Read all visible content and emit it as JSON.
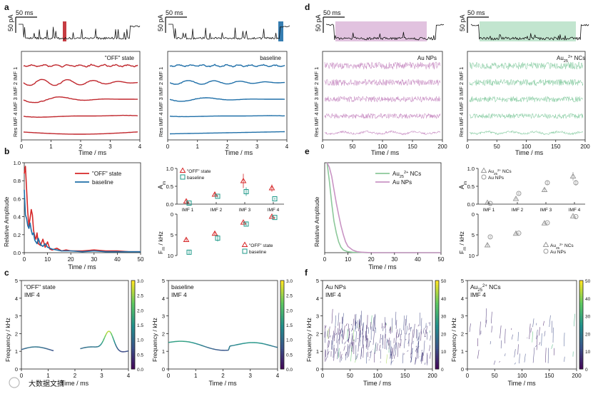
{
  "panels": {
    "a": {
      "letter": "a",
      "scale_ms": "50 ms",
      "scale_pa": "50 pA",
      "left_label": "\"OFF\" state",
      "right_label": "baseline",
      "ylabels": [
        "IMF 1",
        "IMF 2",
        "IMF 3",
        "IMF 4",
        "Res"
      ],
      "xlabel": "Time / ms",
      "xticks": [
        "0",
        "1",
        "2",
        "3",
        "4"
      ],
      "colors": {
        "left": "#c0272d",
        "right": "#1f6fa8"
      }
    },
    "d": {
      "letter": "d",
      "scale_ms": "50 ms",
      "scale_pa": "50 pA",
      "left_label": "Au NPs",
      "right_label_main": "Au",
      "right_label_sub": "25",
      "right_label_sup": "2+",
      "right_label_tail": " NCs",
      "ylabels": [
        "IMF 1",
        "IMF 2",
        "IMF 3",
        "IMF 4",
        "Res"
      ],
      "xlabel": "Time / ms",
      "xticks": [
        "0",
        "50",
        "100",
        "150",
        "200"
      ],
      "colors": {
        "left": "#c98fc4",
        "right": "#8fcfa8"
      }
    },
    "b": {
      "letter": "b",
      "chart_data": {
        "type": "line",
        "title": "",
        "xlabel": "Time / ms",
        "ylabel": "Relative Amplitude",
        "xlim": [
          0,
          50
        ],
        "ylim": [
          0,
          1.0
        ],
        "xticks": [
          "0",
          "10",
          "20",
          "30",
          "40",
          "50"
        ],
        "yticks": [
          "0.0",
          "0.2",
          "0.4",
          "0.6",
          "0.8",
          "1.0"
        ],
        "series": [
          {
            "name": "\"OFF\" state",
            "color": "#d62728",
            "x": [
              0,
              0.5,
              1,
              1.5,
              2,
              2.5,
              3,
              3.5,
              4,
              4.5,
              5,
              5.5,
              6,
              7,
              8,
              9,
              10,
              11,
              12,
              14,
              16,
              18,
              20,
              25,
              30,
              35,
              40,
              45,
              50
            ],
            "y": [
              0.88,
              0.96,
              0.7,
              0.45,
              0.3,
              0.38,
              0.48,
              0.42,
              0.25,
              0.18,
              0.15,
              0.22,
              0.1,
              0.08,
              0.15,
              0.06,
              0.12,
              0.04,
              0.03,
              0.05,
              0.02,
              0.03,
              0.02,
              0.02,
              0.03,
              0.02,
              0.02,
              0.01,
              0.01
            ]
          },
          {
            "name": "baseline",
            "color": "#1f6fa8",
            "x": [
              0,
              0.5,
              1,
              1.5,
              2,
              2.5,
              3,
              3.5,
              4,
              4.5,
              5,
              5.5,
              6,
              7,
              8,
              9,
              10,
              11,
              12,
              14,
              16,
              18,
              20,
              25,
              30,
              35,
              40,
              45,
              50
            ],
            "y": [
              0.7,
              0.42,
              0.38,
              0.3,
              0.27,
              0.33,
              0.25,
              0.2,
              0.22,
              0.14,
              0.12,
              0.1,
              0.16,
              0.09,
              0.07,
              0.1,
              0.06,
              0.05,
              0.04,
              0.03,
              0.02,
              0.02,
              0.02,
              0.01,
              0.02,
              0.01,
              0.01,
              0.01,
              0.01
            ]
          }
        ],
        "legend": "top-right"
      }
    },
    "b_right": {
      "chart_data": {
        "type": "scatter",
        "categories": [
          "IMF 1",
          "IMF 2",
          "IMF 3",
          "IMF 4"
        ],
        "top": {
          "ylabel": "A",
          "ylabel_sub": "m",
          "ylim": [
            0,
            1.0
          ],
          "yticks": [
            "0.0",
            "0.5",
            "1.0"
          ],
          "series": [
            {
              "name": "\"OFF\" state",
              "color": "#d62728",
              "marker": "triangle",
              "values": [
                0.08,
                0.27,
                0.65,
                0.45
              ],
              "err": [
                0.03,
                0.05,
                0.2,
                0.1
              ]
            },
            {
              "name": "baseline",
              "color": "#1f9a8a",
              "marker": "square",
              "values": [
                0.03,
                0.22,
                0.35,
                0.15
              ],
              "err": [
                0.02,
                0.04,
                0.12,
                0.03
              ]
            }
          ]
        },
        "bottom": {
          "ylabel": "F",
          "ylabel_sub": "m",
          "ylabel_tail": " / kHz",
          "ylim": [
            10,
            0
          ],
          "yticks": [
            "0",
            "5",
            "10"
          ],
          "series": [
            {
              "name": "\"OFF\" state",
              "color": "#d62728",
              "marker": "triangle",
              "values": [
                6.2,
                4.7,
                2.0,
                0.6
              ],
              "err": [
                0.3,
                0.4,
                0.2,
                0.2
              ]
            },
            {
              "name": "baseline",
              "color": "#1f9a8a",
              "marker": "square",
              "values": [
                9.2,
                5.8,
                2.4,
                0.8
              ],
              "err": [
                0.5,
                0.8,
                0.4,
                0.2
              ]
            }
          ]
        }
      }
    },
    "e": {
      "letter": "e",
      "chart_data": {
        "type": "line",
        "xlabel": "Time / ms",
        "ylabel": "Relative Amplitude",
        "xlim": [
          0,
          50
        ],
        "ylim": [
          0,
          1.0
        ],
        "xticks": [
          "0",
          "10",
          "20",
          "30",
          "40",
          "50"
        ],
        "series": [
          {
            "name_main": "Au",
            "name_sub": "25",
            "name_sup": "2+",
            "name_tail": " NCs",
            "color": "#8cc89a",
            "x": [
              1,
              2,
              3,
              4,
              5,
              6,
              7,
              8,
              9,
              10,
              12,
              14,
              16,
              18,
              20,
              50
            ],
            "y": [
              1.0,
              0.8,
              0.55,
              0.35,
              0.22,
              0.12,
              0.06,
              0.03,
              0.02,
              0.01,
              0.005,
              0.003,
              0.002,
              0.001,
              0.0,
              0.0
            ]
          },
          {
            "name": "Au NPs",
            "color": "#c994c4",
            "x": [
              1,
              2,
              3,
              4,
              5,
              6,
              7,
              8,
              9,
              10,
              12,
              14,
              16,
              18,
              20,
              50
            ],
            "y": [
              1.0,
              0.95,
              0.85,
              0.7,
              0.55,
              0.42,
              0.3,
              0.2,
              0.12,
              0.07,
              0.03,
              0.01,
              0.005,
              0.002,
              0.0,
              0.0
            ]
          }
        ],
        "legend": "top-right"
      }
    },
    "e_right": {
      "chart_data": {
        "type": "scatter",
        "categories": [
          "IMF 1",
          "IMF 2",
          "IMF 3",
          "IMF 4"
        ],
        "top": {
          "ylabel": "A",
          "ylabel_sub": "m",
          "ylim": [
            0,
            1.0
          ],
          "yticks": [
            "0.0",
            "0.5",
            "1.0"
          ],
          "series": [
            {
              "name_main": "Au",
              "name_sub": "25",
              "name_sup": "2+",
              "name_tail": " NCs",
              "color": "#999999",
              "marker": "triangle",
              "values": [
                0.04,
                0.15,
                0.4,
                0.78
              ],
              "err": [
                0.02,
                0.03,
                0.06,
                0.12
              ]
            },
            {
              "name": "Au NPs",
              "color": "#999999",
              "marker": "circle",
              "values": [
                0.02,
                0.3,
                0.6,
                0.6
              ],
              "err": [
                0.02,
                0.04,
                0.05,
                0.08
              ]
            }
          ]
        },
        "bottom": {
          "ylabel": "F",
          "ylabel_sub": "m",
          "ylabel_tail": " / kHz",
          "ylim": [
            10,
            0
          ],
          "yticks": [
            "0",
            "5",
            "10"
          ],
          "series": [
            {
              "name_main": "Au",
              "name_sub": "25",
              "name_sup": "2+",
              "name_tail": " NCs",
              "color": "#999999",
              "marker": "triangle",
              "values": [
                7.5,
                4.7,
                2.2,
                0.5
              ],
              "err": [
                0.4,
                0.3,
                0.2,
                0.1
              ]
            },
            {
              "name": "Au NPs",
              "color": "#999999",
              "marker": "circle",
              "values": [
                5.5,
                4.6,
                2.1,
                0.6
              ],
              "err": [
                0.3,
                0.2,
                0.2,
                0.1
              ]
            }
          ]
        }
      }
    },
    "c": {
      "letter": "c",
      "left": {
        "title": "\"OFF\" state",
        "subtitle": "IMF 4",
        "xticks": [
          "0",
          "1",
          "2",
          "3",
          "4"
        ],
        "colorbar_ticks": [
          "0.0",
          "0.5",
          "1.0",
          "1.5",
          "2.0",
          "2.5",
          "3.0"
        ]
      },
      "right": {
        "title": "baseline",
        "subtitle": "IMF 4",
        "xticks": [
          "0",
          "1",
          "2",
          "3",
          "4"
        ],
        "colorbar_ticks": [
          "0.0",
          "0.5",
          "1.0",
          "1.5",
          "2.0",
          "2.5",
          "3.0"
        ]
      },
      "ylabel": "Frequency / kHz",
      "xlabel": "Time / ms",
      "yticks": [
        "0",
        "1",
        "2",
        "3",
        "4",
        "5"
      ]
    },
    "f": {
      "letter": "f",
      "left": {
        "title": "Au NPs",
        "subtitle": "IMF 4",
        "xticks": [
          "0",
          "50",
          "100",
          "150",
          "200"
        ],
        "colorbar_ticks": [
          "0",
          "10",
          "20",
          "30",
          "40",
          "50"
        ]
      },
      "right": {
        "title_main": "Au",
        "title_sub": "25",
        "title_sup": "2+",
        "title_tail": " NCs",
        "subtitle": "IMF 4",
        "xticks": [
          "0",
          "50",
          "100",
          "150",
          "200"
        ],
        "colorbar_ticks": [
          "0",
          "10",
          "20",
          "30",
          "40",
          "50"
        ]
      },
      "ylabel": "Frequency / kHz",
      "xlabel": "Time / ms",
      "yticks": [
        "0",
        "1",
        "2",
        "3",
        "4",
        "5"
      ]
    }
  },
  "watermark": "大数据文摘"
}
